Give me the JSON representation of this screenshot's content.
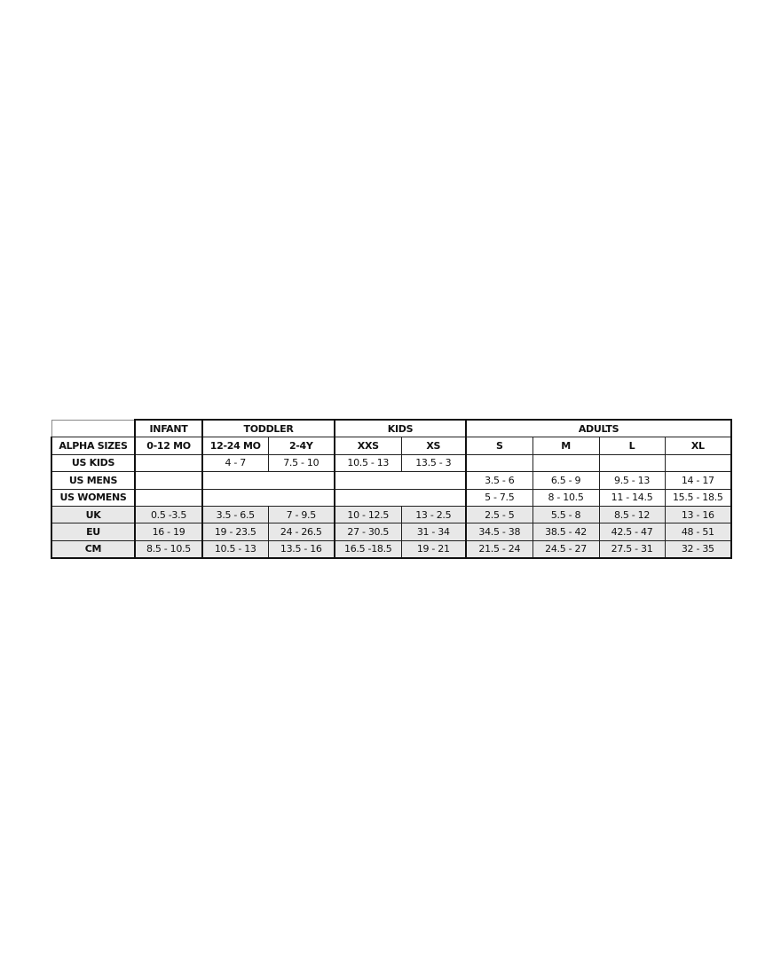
{
  "groups": {
    "corner": "",
    "infant": "INFANT",
    "toddler": "TODDLER",
    "kids": "KIDS",
    "adults": "ADULTS"
  },
  "alpha": {
    "label": "ALPHA SIZES",
    "sizes": [
      "0-12 MO",
      "12-24 MO",
      "2-4Y",
      "XXS",
      "XS",
      "S",
      "M",
      "L",
      "XL"
    ]
  },
  "us_kids": {
    "label": "US KIDS",
    "values": [
      "",
      "4 - 7",
      "7.5 - 10",
      "10.5 - 13",
      "13.5 - 3",
      "",
      "",
      "",
      ""
    ]
  },
  "us_mens": {
    "label": "US MENS",
    "values": [
      "3.5 - 6",
      "6.5 - 9",
      "9.5 - 13",
      "14 - 17"
    ]
  },
  "us_womens": {
    "label": "US WOMENS",
    "values": [
      "5 - 7.5",
      "8 - 10.5",
      "11 - 14.5",
      "15.5 - 18.5"
    ]
  },
  "uk": {
    "label": "UK",
    "values": [
      "0.5 -3.5",
      "3.5 - 6.5",
      "7 - 9.5",
      "10 - 12.5",
      "13 - 2.5",
      "2.5 - 5",
      "5.5 - 8",
      "8.5 - 12",
      "13 - 16"
    ]
  },
  "eu": {
    "label": "EU",
    "values": [
      "16 - 19",
      "19 - 23.5",
      "24 - 26.5",
      "27 - 30.5",
      "31 - 34",
      "34.5 - 38",
      "38.5 - 42",
      "42.5 - 47",
      "48 - 51"
    ]
  },
  "cm": {
    "label": "CM",
    "values": [
      "8.5 - 10.5",
      "10.5 - 13",
      "13.5 - 16",
      "16.5 -18.5",
      "19 - 21",
      "21.5 - 24",
      "24.5 - 27",
      "27.5 - 31",
      "32 - 35"
    ]
  },
  "colors": {
    "shaded_row": "#e8e8e8",
    "border": "#111111"
  }
}
